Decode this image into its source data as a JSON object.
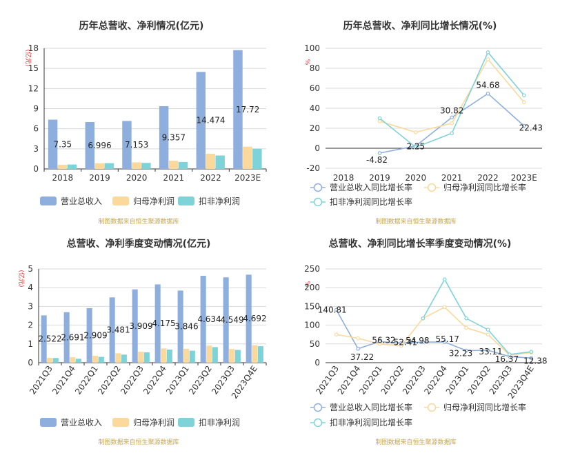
{
  "colors": {
    "revenue": "#8eaedd",
    "parent_profit": "#fbd89b",
    "deducted_profit": "#7ed3d8",
    "grid": "#d9d9d9",
    "axis": "#333333",
    "title": "#333333",
    "unit": "#e0282e",
    "source": "#c8a54f"
  },
  "source_note": "制图数据来自恒生聚源数据库",
  "chart_data": [
    {
      "id": "annual-values",
      "type": "bar",
      "title": "历年总营收、净利情况(亿元)",
      "ylabel": "(亿元)",
      "ylim": [
        0,
        18
      ],
      "yticks": [
        0,
        3,
        6,
        9,
        12,
        15,
        18
      ],
      "grid": true,
      "categories": [
        "2018",
        "2019",
        "2020",
        "2021",
        "2022",
        "2023E"
      ],
      "series": [
        {
          "name": "营业总收入",
          "values": [
            7.35,
            6.996,
            7.153,
            9.357,
            14.474,
            17.72
          ]
        },
        {
          "name": "归母净利润",
          "values": [
            0.62,
            0.84,
            0.98,
            1.22,
            2.26,
            3.32
          ]
        },
        {
          "name": "扣非净利润",
          "values": [
            0.66,
            0.86,
            0.9,
            1.04,
            2.0,
            3.02
          ]
        }
      ],
      "data_labels": [
        "7.35",
        "6.996",
        "7.153",
        "9.357",
        "14.474",
        "17.72"
      ],
      "legend": [
        "营业总收入",
        "归母净利润",
        "扣非净利润"
      ]
    },
    {
      "id": "annual-growth",
      "type": "line",
      "title": "历年总营收、净利同比增长情况(%)",
      "ylabel": "%",
      "ylim": [
        -20,
        100
      ],
      "yticks": [
        -20,
        0,
        20,
        40,
        60,
        80,
        100
      ],
      "grid": true,
      "categories": [
        "2018",
        "2019",
        "2020",
        "2021",
        "2022",
        "2023E"
      ],
      "series": [
        {
          "name": "营业总收入同比增长率",
          "values": [
            null,
            -4.82,
            2.25,
            30.82,
            54.68,
            22.43
          ]
        },
        {
          "name": "归母净利润同比增长率",
          "values": [
            null,
            27,
            16,
            25,
            89,
            46
          ]
        },
        {
          "name": "扣非净利润同比增长率",
          "values": [
            null,
            30,
            1,
            15,
            96,
            53
          ]
        }
      ],
      "data_labels": [
        "-4.82",
        "2.25",
        "30.82",
        "54.68",
        "22.43"
      ],
      "legend": [
        "营业总收入同比增长率",
        "归母净利润同比增长率",
        "扣非净利润同比增长率"
      ]
    },
    {
      "id": "quarterly-values",
      "type": "bar",
      "title": "总营收、净利季度变动情况(亿元)",
      "ylabel": "(亿元)",
      "ylim": [
        0,
        5
      ],
      "yticks": [
        0,
        1,
        2,
        3,
        4,
        5
      ],
      "grid": true,
      "categories": [
        "2021Q3",
        "2021Q4",
        "2022Q1",
        "2022Q2",
        "2022Q3",
        "2022Q4",
        "2023Q1",
        "2023Q2",
        "2023Q3",
        "2023Q4E"
      ],
      "series": [
        {
          "name": "营业总收入",
          "values": [
            2.522,
            2.691,
            2.909,
            3.481,
            3.909,
            4.175,
            3.846,
            4.634,
            4.549,
            4.692
          ]
        },
        {
          "name": "归母净利润",
          "values": [
            0.26,
            0.29,
            0.37,
            0.5,
            0.58,
            0.76,
            0.74,
            0.91,
            0.73,
            0.93
          ]
        },
        {
          "name": "扣非净利润",
          "values": [
            0.25,
            0.21,
            0.31,
            0.43,
            0.55,
            0.7,
            0.64,
            0.83,
            0.68,
            0.88
          ]
        }
      ],
      "data_labels": [
        "2.522",
        "2.691",
        "2.909",
        "3.481",
        "3.909",
        "4.175",
        "3.846",
        "4.634",
        "4.549",
        "4.692"
      ],
      "legend": [
        "营业总收入",
        "归母净利润",
        "扣非净利润"
      ]
    },
    {
      "id": "quarterly-growth",
      "type": "line",
      "title": "总营收、净利同比增长率季度变动情况(%)",
      "ylabel": "%",
      "ylim": [
        0,
        250
      ],
      "yticks": [
        0,
        50,
        100,
        150,
        200,
        250
      ],
      "grid": true,
      "categories": [
        "2021Q3",
        "2021Q4",
        "2022Q1",
        "2022Q2",
        "2022Q3",
        "2022Q4",
        "2023Q1",
        "2023Q2",
        "2023Q3",
        "2023Q4E"
      ],
      "series": [
        {
          "name": "营业总收入同比增长率",
          "values": [
            140.81,
            37.22,
            56.32,
            52.41,
            54.98,
            55.17,
            32.23,
            33.11,
            16.37,
            12.38
          ]
        },
        {
          "name": "归母净利润同比增长率",
          "values": [
            75,
            65,
            50,
            45,
            118,
            148,
            93,
            75,
            20,
            27
          ]
        },
        {
          "name": "扣非净利润同比增长率",
          "values": [
            null,
            null,
            null,
            null,
            118,
            222,
            118,
            88,
            22,
            29
          ]
        }
      ],
      "data_labels": [
        "140.81",
        "37.22",
        "56.32",
        "52.41",
        "54.98",
        "55.17",
        "32.23",
        "33.11",
        "16.37",
        "12.38"
      ],
      "legend": [
        "营业总收入同比增长率",
        "归母净利润同比增长率",
        "扣非净利润同比增长率"
      ]
    }
  ]
}
